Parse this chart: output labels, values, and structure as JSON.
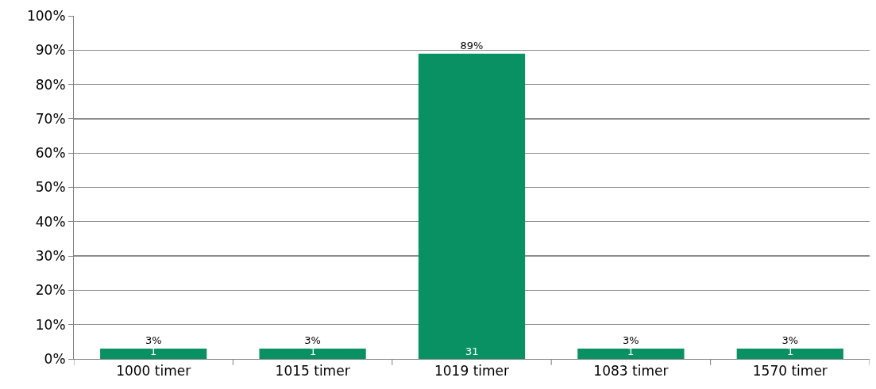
{
  "chart_data": {
    "type": "bar",
    "categories": [
      "1000 timer",
      "1015 timer",
      "1019 timer",
      "1083 timer",
      "1570 timer"
    ],
    "values": [
      3,
      3,
      89,
      3,
      3
    ],
    "value_labels": [
      "3%",
      "3%",
      "89%",
      "3%",
      "3%"
    ],
    "color": "#0a9163",
    "ylim": [
      0,
      100
    ],
    "yticks": [
      {
        "value": 0,
        "label": "0%"
      },
      {
        "value": 10,
        "label": "10%"
      },
      {
        "value": 20,
        "label": "20%"
      },
      {
        "value": 30,
        "label": "30%"
      },
      {
        "value": 40,
        "label": "40%"
      },
      {
        "value": 50,
        "label": "50%"
      },
      {
        "value": 60,
        "label": "60%"
      },
      {
        "value": 70,
        "label": "70%"
      },
      {
        "value": 80,
        "label": "80%"
      },
      {
        "value": 90,
        "label": "90%"
      },
      {
        "value": 100,
        "label": "100%"
      }
    ],
    "grid": "y",
    "annotations": [
      {
        "text": "1",
        "x": "1000 timer",
        "y": 0
      },
      {
        "text": "1",
        "x": "1015 timer",
        "y": 0
      },
      {
        "text": "31",
        "x": "1019 timer",
        "y": 0
      },
      {
        "text": "1",
        "x": "1083 timer",
        "y": 0
      },
      {
        "text": "1",
        "x": "1570 timer",
        "y": 0
      }
    ]
  }
}
